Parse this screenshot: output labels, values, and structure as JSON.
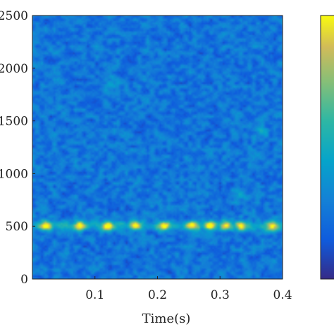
{
  "chart_data": {
    "type": "heatmap",
    "title": "",
    "xlabel": "Time(s)",
    "ylabel": "",
    "xlim": [
      0,
      0.4
    ],
    "ylim": [
      0,
      2500
    ],
    "x_ticks": [
      0.1,
      0.2,
      0.3,
      0.4
    ],
    "x_tick_labels": [
      "0.1",
      "0.2",
      "0.3",
      "0.4"
    ],
    "y_ticks": [
      0,
      500,
      1000,
      1500,
      2000,
      2500
    ],
    "y_tick_labels": [
      "0",
      "500",
      "1000",
      "1500",
      "2000",
      "2500"
    ],
    "colormap": "parula",
    "colorbar": true,
    "grid": false,
    "values": {
      "background_level": 0.25,
      "dominant_band_frequency": 500,
      "band_level": 0.85,
      "band_peaks_time": [
        0.02,
        0.075,
        0.12,
        0.165,
        0.21,
        0.255,
        0.285,
        0.31,
        0.335,
        0.385
      ],
      "weak_spots": [
        {
          "time": 0.125,
          "frequency": 1850,
          "level": 0.5
        },
        {
          "time": 0.33,
          "frequency": 800,
          "level": 0.5
        },
        {
          "time": 0.365,
          "frequency": 1400,
          "level": 0.45
        }
      ]
    }
  }
}
